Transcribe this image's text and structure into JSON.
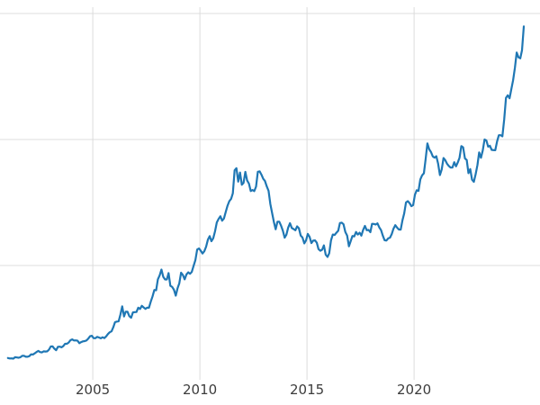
{
  "figure": {
    "background": "#ffffff",
    "grid_color": "#dcdcdc",
    "line_color": "#1f77b4",
    "tick_label_color": "#3c3c3c"
  },
  "chart_data": {
    "type": "line",
    "title": "",
    "xlabel": "",
    "ylabel": "",
    "grid": true,
    "legend_visible": false,
    "x_range": [
      2000.67,
      2025.88
    ],
    "y_range": [
      93,
      3107
    ],
    "x_ticks": [
      {
        "value": 2005,
        "label": "2005"
      },
      {
        "value": 2010,
        "label": "2010"
      },
      {
        "value": 2015,
        "label": "2015"
      },
      {
        "value": 2020,
        "label": "2020"
      }
    ],
    "y_gridline_values": [
      1000,
      2000,
      3000
    ],
    "series": [
      {
        "name": "series1",
        "interval": "monthly",
        "start_year": 2001,
        "values": [
          266,
          262,
          263,
          261,
          272,
          270,
          268,
          272,
          284,
          283,
          276,
          276,
          281,
          295,
          294,
          303,
          314,
          322,
          313,
          310,
          319,
          317,
          319,
          333,
          357,
          359,
          340,
          328,
          355,
          356,
          351,
          360,
          379,
          379,
          389,
          407,
          414,
          405,
          406,
          403,
          384,
          392,
          398,
          400,
          405,
          420,
          439,
          442,
          424,
          423,
          434,
          429,
          422,
          431,
          424,
          437,
          456,
          470,
          477,
          510,
          550,
          555,
          557,
          611,
          676,
          596,
          634,
          633,
          598,
          586,
          628,
          630,
          631,
          665,
          655,
          680,
          667,
          656,
          665,
          665,
          713,
          755,
          806,
          804,
          890,
          922,
          968,
          910,
          889,
          889,
          940,
          839,
          830,
          807,
          761,
          820,
          858,
          943,
          924,
          890,
          929,
          946,
          934,
          949,
          997,
          1043,
          1127,
          1135,
          1118,
          1095,
          1113,
          1149,
          1205,
          1233,
          1193,
          1216,
          1271,
          1342,
          1370,
          1391,
          1356,
          1373,
          1424,
          1474,
          1511,
          1529,
          1573,
          1756,
          1772,
          1666,
          1738,
          1641,
          1656,
          1743,
          1674,
          1650,
          1591,
          1599,
          1590,
          1626,
          1744,
          1747,
          1721,
          1688,
          1671,
          1628,
          1593,
          1487,
          1414,
          1343,
          1287,
          1348,
          1348,
          1316,
          1276,
          1221,
          1244,
          1301,
          1336,
          1298,
          1289,
          1279,
          1311,
          1296,
          1238,
          1222,
          1176,
          1201,
          1251,
          1227,
          1178,
          1198,
          1199,
          1181,
          1130,
          1117,
          1125,
          1159,
          1086,
          1068,
          1097,
          1200,
          1246,
          1242,
          1260,
          1276,
          1337,
          1340,
          1327,
          1266,
          1238,
          1152,
          1192,
          1234,
          1231,
          1266,
          1246,
          1260,
          1237,
          1283,
          1314,
          1280,
          1282,
          1264,
          1331,
          1330,
          1325,
          1334,
          1303,
          1281,
          1238,
          1201,
          1198,
          1215,
          1221,
          1250,
          1292,
          1320,
          1301,
          1286,
          1284,
          1359,
          1413,
          1500,
          1511,
          1495,
          1471,
          1480,
          1561,
          1597,
          1592,
          1683,
          1716,
          1732,
          1843,
          1969,
          1922,
          1900,
          1866,
          1856,
          1867,
          1808,
          1718,
          1762,
          1853,
          1835,
          1808,
          1790,
          1777,
          1777,
          1820,
          1787,
          1817,
          1856,
          1948,
          1937,
          1850,
          1837,
          1733,
          1765,
          1681,
          1664,
          1725,
          1798,
          1898,
          1855,
          1913,
          2000,
          1992,
          1943,
          1951,
          1918,
          1916,
          1915,
          1984,
          2034,
          2034,
          2025,
          2158,
          2330,
          2351,
          2327,
          2398,
          2470,
          2568,
          2690,
          2652,
          2644,
          2708,
          2897
        ]
      }
    ]
  }
}
